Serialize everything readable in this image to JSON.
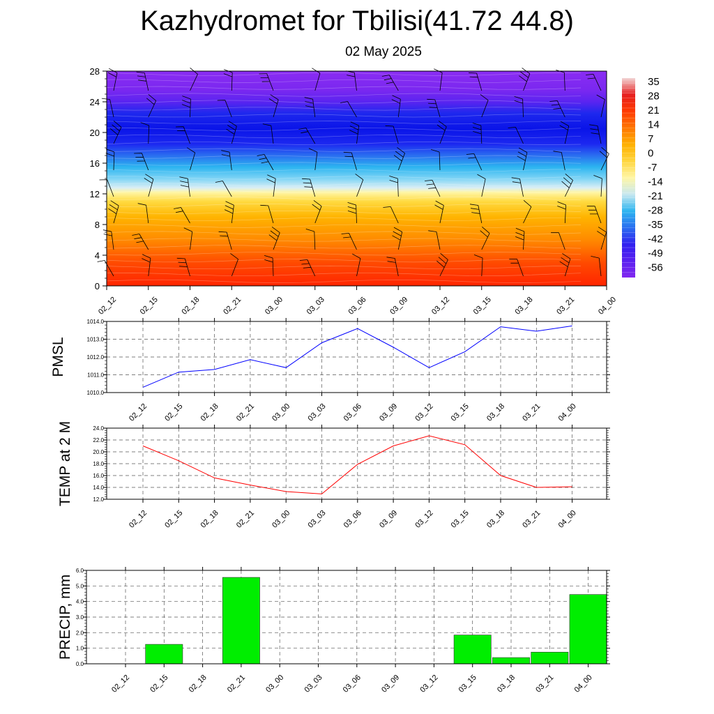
{
  "title": "Kazhydromet for Tbilisi(41.72 44.8)",
  "subtitle": "02 May 2025",
  "chart_data": [
    {
      "type": "heatmap",
      "name": "cross-section",
      "x": [
        "02_12",
        "02_15",
        "02_18",
        "02_21",
        "03_00",
        "03_03",
        "03_06",
        "03_09",
        "03_12",
        "03_15",
        "03_18",
        "03_21",
        "04_00"
      ],
      "ylim": [
        0,
        28
      ],
      "yticks": [
        0,
        4,
        8,
        12,
        16,
        20,
        24,
        28
      ],
      "colorbar_labels": [
        "35",
        "28",
        "21",
        "14",
        "7",
        "0",
        "-7",
        "-14",
        "-21",
        "-28",
        "-35",
        "-42",
        "-49",
        "-56"
      ],
      "colorbar_colors": [
        "#f2d4d4",
        "#e62020",
        "#ff3a00",
        "#ff7700",
        "#ffb000",
        "#ffd640",
        "#fff6a6",
        "#c8e8f0",
        "#2cb4f0",
        "#2a6ef0",
        "#3020f0",
        "#5a20f0",
        "#8228f0"
      ],
      "profile": [
        {
          "y": 0,
          "color": "#ff2500"
        },
        {
          "y": 3,
          "color": "#ff4a00"
        },
        {
          "y": 6,
          "color": "#ff8a00"
        },
        {
          "y": 9,
          "color": "#ffb400"
        },
        {
          "y": 11,
          "color": "#ffda40"
        },
        {
          "y": 12.2,
          "color": "#fff6a6"
        },
        {
          "y": 12.8,
          "color": "#d9eef5"
        },
        {
          "y": 14,
          "color": "#7ed4f5"
        },
        {
          "y": 15.5,
          "color": "#2cb4f0"
        },
        {
          "y": 17,
          "color": "#2a6ef0"
        },
        {
          "y": 18.5,
          "color": "#1c28f0"
        },
        {
          "y": 20.5,
          "color": "#0a14e8"
        },
        {
          "y": 22.5,
          "color": "#1e28ee"
        },
        {
          "y": 24,
          "color": "#5a24f0"
        },
        {
          "y": 25.5,
          "color": "#7a28f0"
        },
        {
          "y": 28,
          "color": "#8a2cf2"
        }
      ]
    },
    {
      "type": "line",
      "ylabel": "PMSL",
      "x": [
        "02_12",
        "02_15",
        "02_18",
        "02_21",
        "03_00",
        "03_03",
        "03_06",
        "03_09",
        "03_12",
        "03_15",
        "03_18",
        "03_21",
        "04_00"
      ],
      "values": [
        1010.3,
        1011.15,
        1011.3,
        1011.85,
        1011.4,
        1012.8,
        1013.6,
        1012.55,
        1011.4,
        1012.3,
        1013.7,
        1013.45,
        1013.75
      ],
      "ylim": [
        1010.0,
        1014.0
      ],
      "yticks": [
        "1010.0",
        "1011.0",
        "1012.0",
        "1013.0",
        "1014.0"
      ],
      "color": "#0000ff"
    },
    {
      "type": "line",
      "ylabel": "TEMP at 2 M",
      "x": [
        "02_12",
        "02_15",
        "02_18",
        "02_21",
        "03_00",
        "03_03",
        "03_06",
        "03_09",
        "03_12",
        "03_15",
        "03_18",
        "03_21",
        "04_00"
      ],
      "values": [
        21.0,
        18.5,
        15.6,
        14.4,
        13.3,
        12.9,
        17.9,
        21.0,
        22.7,
        21.2,
        16.0,
        14.0,
        14.1
      ],
      "ylim": [
        12.0,
        24.0
      ],
      "yticks": [
        "12.0",
        "14.0",
        "16.0",
        "18.0",
        "20.0",
        "22.0",
        "24.0"
      ],
      "color": "#ff0000"
    },
    {
      "type": "bar",
      "ylabel": "PRECIP, mm",
      "categories": [
        "02_12",
        "02_15",
        "02_18",
        "02_21",
        "03_00",
        "03_03",
        "03_06",
        "03_09",
        "03_12",
        "03_15",
        "03_18",
        "03_21",
        "04_00"
      ],
      "values": [
        0,
        1.25,
        0,
        5.55,
        0,
        0,
        0,
        0,
        0,
        1.85,
        0.4,
        0.75,
        4.45
      ],
      "ylim": [
        0.0,
        6.0
      ],
      "yticks": [
        "0.0",
        "1.0",
        "2.0",
        "3.0",
        "4.0",
        "5.0",
        "6.0"
      ],
      "color": "#00ee00"
    }
  ]
}
